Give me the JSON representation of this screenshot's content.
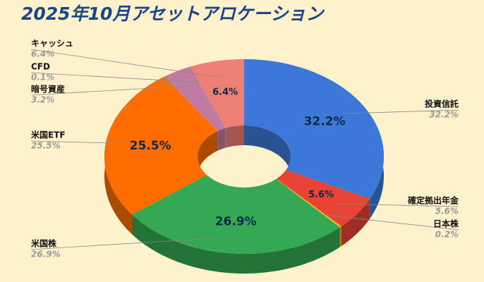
{
  "chart_data": {
    "type": "pie",
    "donut": true,
    "title": "2025年10月アセットアロケーション",
    "categories": [
      "投資信託",
      "確定拠出年金",
      "日本株",
      "米国株",
      "米国ETF",
      "暗号資産",
      "CFD",
      "キャッシュ"
    ],
    "values": [
      32.2,
      5.6,
      0.2,
      26.9,
      25.5,
      3.2,
      0.1,
      6.4
    ],
    "value_labels": [
      "32.2%",
      "5.6%",
      "0.2%",
      "26.9%",
      "25.5%",
      "3.2%",
      "0.1%",
      "6.4%"
    ],
    "colors": [
      "#3c78d8",
      "#e94335",
      "#f4c20d",
      "#34a853",
      "#ff6d01",
      "#c27ba0",
      "#8e7cc3",
      "#ee7f74"
    ]
  }
}
